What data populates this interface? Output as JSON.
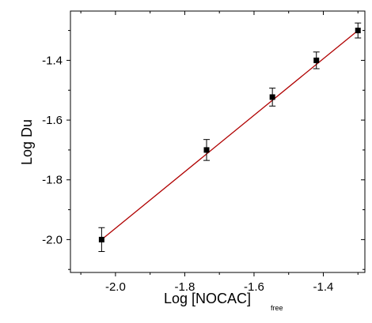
{
  "chart_data": {
    "type": "scatter",
    "xlabel": "Log [NOCAC]",
    "xlabel_subscript": "free",
    "ylabel": "Log Du",
    "xlim": [
      -2.13,
      -1.28
    ],
    "ylim": [
      -2.11,
      -1.235
    ],
    "x_ticks": [
      -2.0,
      -1.8,
      -1.6,
      -1.4
    ],
    "x_tick_labels": [
      "-2.0",
      "-1.8",
      "-1.6",
      "-1.4"
    ],
    "y_ticks": [
      -2.0,
      -1.8,
      -1.6,
      -1.4
    ],
    "y_tick_labels": [
      "-2.0",
      "-1.8",
      "-1.6",
      "-1.4"
    ],
    "grid": false,
    "series": [
      {
        "marker": "square",
        "color": "#000000",
        "x": [
          -2.04,
          -1.737,
          -1.547,
          -1.42,
          -1.3
        ],
        "y": [
          -2.0,
          -1.7,
          -1.523,
          -1.4,
          -1.3
        ],
        "error_y": [
          0.04,
          0.035,
          0.03,
          0.028,
          0.025
        ]
      }
    ],
    "fit_line": {
      "color": "#b00000",
      "x": [
        -2.04,
        -1.3
      ],
      "y": [
        -2.0,
        -1.3
      ]
    }
  }
}
